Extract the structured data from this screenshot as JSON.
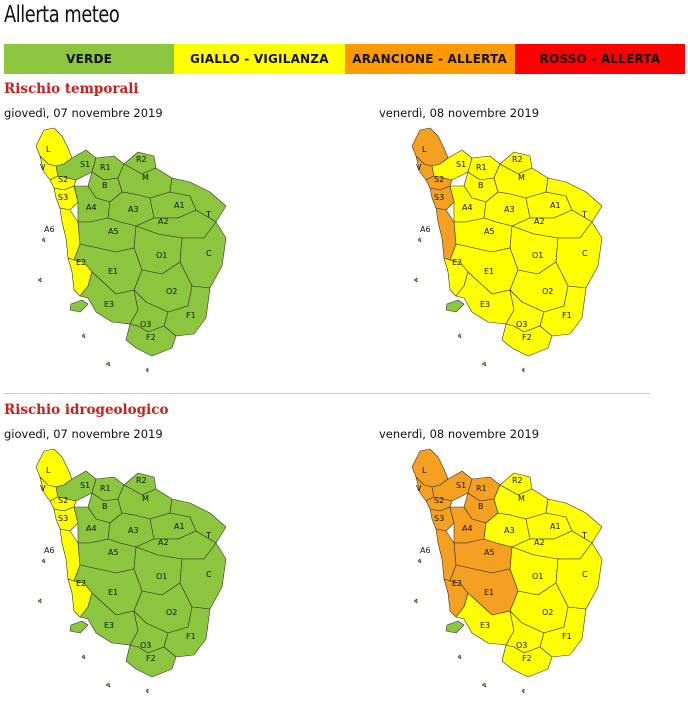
{
  "title": "Allerta meteo",
  "legend": [
    {
      "label": "VERDE",
      "color": "#8cc63f"
    },
    {
      "label": "GIALLO - VIGILANZA",
      "color": "#ffff00"
    },
    {
      "label": "ARANCIONE - ALLERTA",
      "color": "#ff9900"
    },
    {
      "label": "ROSSO - ALLERTA",
      "color": "#ff0000"
    }
  ],
  "colors": {
    "green": "#8cc63f",
    "yellow": "#ffff00",
    "orange": "#f5a020"
  },
  "sections": [
    {
      "heading": "Rischio temporali",
      "maps": [
        {
          "date": "giovedì, 07 novembre 2019",
          "zones": {
            "L": "yellow",
            "V": "yellow",
            "S1": "green",
            "S2": "yellow",
            "S3": "yellow",
            "A6": "yellow",
            "E2": "yellow",
            "R1": "green",
            "R2": "green",
            "B": "green",
            "M": "green",
            "A4": "green",
            "A3": "green",
            "A1": "green",
            "A2": "green",
            "T": "green",
            "A5": "green",
            "O1": "green",
            "C": "green",
            "E1": "green",
            "O2": "green",
            "E3": "green",
            "O3": "green",
            "F1": "green",
            "F2": "green"
          }
        },
        {
          "date": "venerdì, 08 novembre 2019",
          "zones": {
            "L": "orange",
            "V": "orange",
            "S1": "yellow",
            "S2": "orange",
            "S3": "orange",
            "A6": "orange",
            "E2": "yellow",
            "R1": "yellow",
            "R2": "yellow",
            "B": "yellow",
            "M": "yellow",
            "A4": "yellow",
            "A3": "yellow",
            "A1": "yellow",
            "A2": "yellow",
            "T": "yellow",
            "A5": "yellow",
            "O1": "yellow",
            "C": "yellow",
            "E1": "yellow",
            "O2": "yellow",
            "E3": "yellow",
            "O3": "yellow",
            "F1": "yellow",
            "F2": "yellow"
          }
        }
      ]
    },
    {
      "heading": "Rischio idrogeologico",
      "maps": [
        {
          "date": "giovedì, 07 novembre 2019",
          "zones": {
            "L": "yellow",
            "V": "yellow",
            "S1": "green",
            "S2": "yellow",
            "S3": "yellow",
            "A6": "yellow",
            "E2": "yellow",
            "R1": "green",
            "R2": "green",
            "B": "green",
            "M": "green",
            "A4": "green",
            "A3": "green",
            "A1": "green",
            "A2": "green",
            "T": "green",
            "A5": "green",
            "O1": "green",
            "C": "green",
            "E1": "green",
            "O2": "green",
            "E3": "green",
            "O3": "green",
            "F1": "green",
            "F2": "green"
          }
        },
        {
          "date": "venerdì, 08 novembre 2019",
          "zones": {
            "L": "orange",
            "V": "orange",
            "S1": "orange",
            "S2": "orange",
            "S3": "orange",
            "A6": "orange",
            "E2": "orange",
            "R1": "orange",
            "R2": "yellow",
            "B": "orange",
            "M": "yellow",
            "A4": "orange",
            "A3": "yellow",
            "A1": "yellow",
            "A2": "yellow",
            "T": "yellow",
            "A5": "orange",
            "O1": "yellow",
            "C": "yellow",
            "E1": "orange",
            "O2": "yellow",
            "E3": "yellow",
            "O3": "yellow",
            "F1": "yellow",
            "F2": "yellow"
          }
        }
      ]
    }
  ]
}
